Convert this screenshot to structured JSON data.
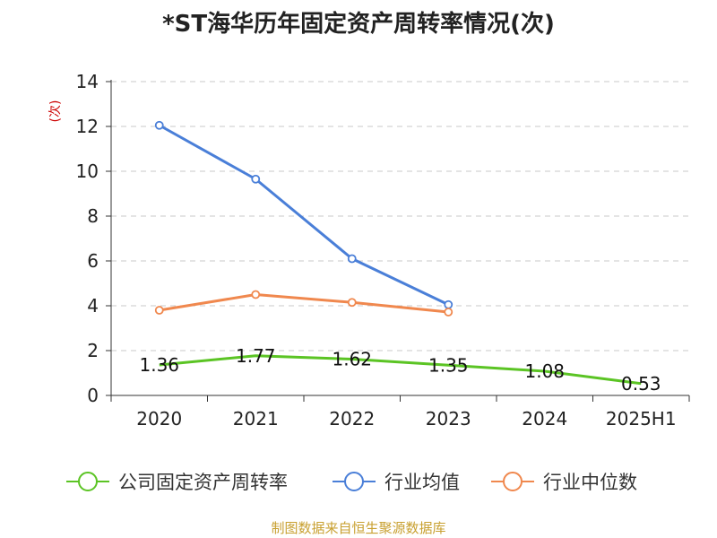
{
  "title": "*ST海华历年固定资产周转率情况(次)",
  "source": "制图数据来自恒生聚源数据库",
  "chart_data": {
    "type": "line",
    "title": "*ST海华历年固定资产周转率情况(次)",
    "unit": "(次)",
    "categories": [
      "2020",
      "2021",
      "2022",
      "2023",
      "2024",
      "2025H1"
    ],
    "ylim": [
      0,
      14
    ],
    "yticks": [
      0,
      2,
      4,
      6,
      8,
      10,
      12,
      14
    ],
    "grid": true,
    "legend_position": "bottom",
    "series": [
      {
        "name": "公司固定资产周转率",
        "color": "#5bc424",
        "values": [
          1.36,
          1.77,
          1.62,
          1.35,
          1.08,
          0.53
        ],
        "labels": [
          "1.36",
          "1.77",
          "1.62",
          "1.35",
          "1.08",
          "0.53"
        ],
        "markers": false
      },
      {
        "name": "行业均值",
        "color": "#4a7fd8",
        "values": [
          12.05,
          9.65,
          6.1,
          4.05,
          null,
          null
        ],
        "markers": true
      },
      {
        "name": "行业中位数",
        "color": "#f0884e",
        "values": [
          3.8,
          4.5,
          4.15,
          3.72,
          null,
          null
        ],
        "markers": true
      }
    ]
  }
}
